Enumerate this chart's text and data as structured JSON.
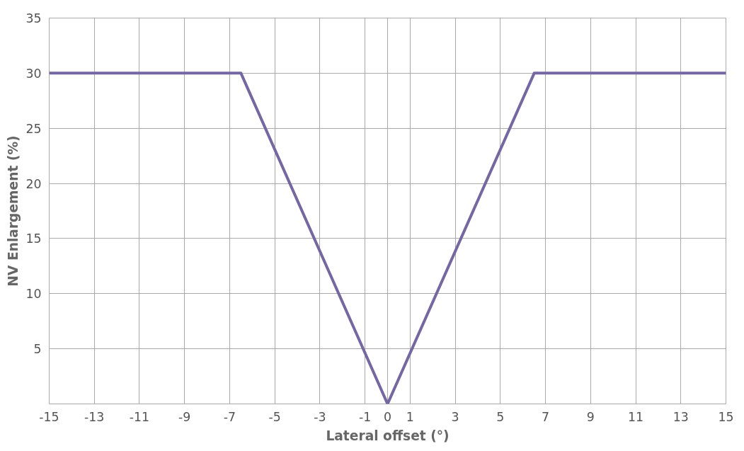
{
  "chart_data": {
    "type": "line",
    "xlabel": "Lateral offset (°)",
    "ylabel": "NV Enlargement (%)",
    "x": [
      -15,
      -6.5,
      0,
      6.5,
      15
    ],
    "series": [
      {
        "color": "#7467a2",
        "values": [
          30,
          30,
          0,
          30,
          30
        ]
      }
    ],
    "xlim": [
      -15,
      15
    ],
    "ylim": [
      0,
      35
    ],
    "xticks": [
      -15,
      -13,
      -11,
      -9,
      -7,
      -5,
      -3,
      -1,
      0,
      1,
      3,
      5,
      7,
      9,
      11,
      13,
      15
    ],
    "yticks": [
      {
        "value": 0,
        "label": null
      },
      5,
      10,
      15,
      20,
      25,
      30,
      35
    ],
    "grid": true,
    "marker": "none",
    "line_style": "solid"
  }
}
